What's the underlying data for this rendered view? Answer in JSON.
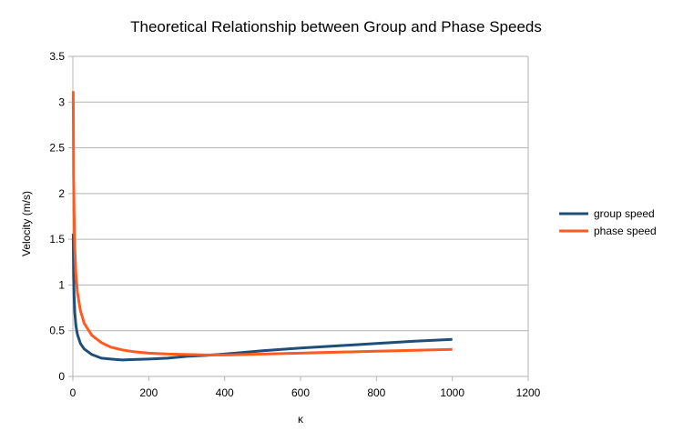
{
  "chart_data": {
    "type": "line",
    "title": "Theoretical Relationship between Group and Phase Speeds",
    "xlabel": "κ",
    "ylabel": "Velocity (m/s)",
    "xlim": [
      0,
      1200
    ],
    "ylim": [
      0,
      3.5
    ],
    "xticks": [
      "0",
      "200",
      "400",
      "600",
      "800",
      "1000",
      "1200"
    ],
    "yticks": [
      "0",
      "0.5",
      "1",
      "1.5",
      "2",
      "2.5",
      "3",
      "3.5"
    ],
    "grid": "horizontal",
    "legend": "right",
    "series": [
      {
        "name": "group speed",
        "color": "#1f4e79",
        "x": [
          1,
          2,
          3,
          5,
          8,
          12,
          20,
          30,
          50,
          75,
          100,
          130,
          160,
          200,
          250,
          300,
          350,
          400,
          500,
          600,
          700,
          800,
          900,
          1000
        ],
        "y": [
          1.56,
          1.1,
          0.9,
          0.7,
          0.56,
          0.46,
          0.36,
          0.3,
          0.24,
          0.2,
          0.19,
          0.18,
          0.185,
          0.19,
          0.2,
          0.22,
          0.23,
          0.245,
          0.28,
          0.31,
          0.335,
          0.36,
          0.385,
          0.405
        ]
      },
      {
        "name": "phase speed",
        "color": "#ff5a1f",
        "x": [
          1,
          2,
          3,
          5,
          8,
          12,
          20,
          30,
          50,
          75,
          100,
          130,
          160,
          200,
          250,
          300,
          350,
          400,
          500,
          600,
          700,
          800,
          900,
          1000
        ],
        "y": [
          3.12,
          2.2,
          1.8,
          1.4,
          1.12,
          0.92,
          0.72,
          0.58,
          0.45,
          0.37,
          0.32,
          0.29,
          0.27,
          0.255,
          0.245,
          0.24,
          0.235,
          0.235,
          0.245,
          0.255,
          0.265,
          0.275,
          0.285,
          0.295
        ]
      }
    ]
  }
}
